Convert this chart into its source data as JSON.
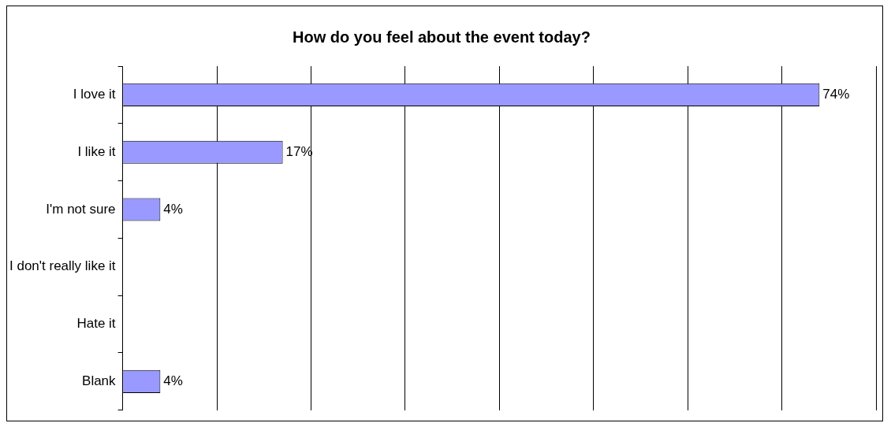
{
  "chart_data": {
    "type": "bar",
    "orientation": "horizontal",
    "title": "How do you feel about the event today?",
    "categories": [
      "I love it",
      "I like it",
      "I'm not sure",
      "I don't really like it",
      "Hate it",
      "Blank"
    ],
    "values": [
      74,
      17,
      4,
      0,
      0,
      4
    ],
    "value_labels": [
      "74%",
      "17%",
      "4%",
      null,
      null,
      "4%"
    ],
    "color": "#9999ff",
    "xlim": [
      0,
      80
    ],
    "xticks": [
      {
        "value": 0,
        "label": null
      },
      {
        "value": 10,
        "label": null
      },
      {
        "value": 20,
        "label": null
      },
      {
        "value": 30,
        "label": null
      },
      {
        "value": 40,
        "label": null
      },
      {
        "value": 50,
        "label": null
      },
      {
        "value": 60,
        "label": null
      },
      {
        "value": 70,
        "label": null
      },
      {
        "value": 80,
        "label": null
      }
    ],
    "grid": "x",
    "tick_labels": "y",
    "legend": false
  }
}
